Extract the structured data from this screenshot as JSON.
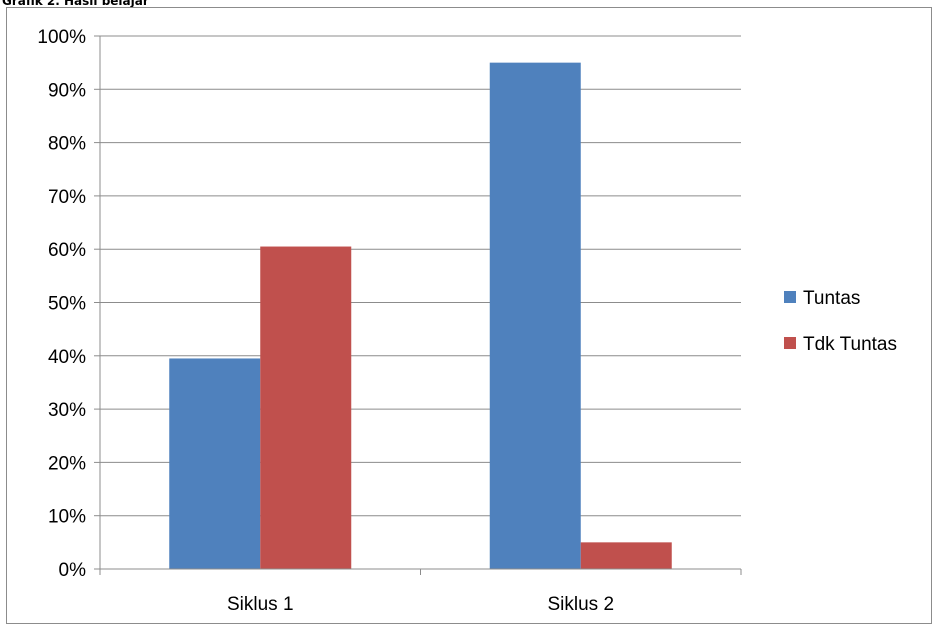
{
  "caption": "Grafik 2. Hasil belajar",
  "chart_data": {
    "type": "bar",
    "categories": [
      "Siklus 1",
      "Siklus 2"
    ],
    "series": [
      {
        "name": "Tuntas",
        "values": [
          39.5,
          95
        ],
        "color": "#4f81bd"
      },
      {
        "name": "Tdk Tuntas",
        "values": [
          60.5,
          5
        ],
        "color": "#c0504d"
      }
    ],
    "ylim": [
      0,
      100
    ],
    "yticks": [
      0,
      10,
      20,
      30,
      40,
      50,
      60,
      70,
      80,
      90,
      100
    ],
    "ytick_labels": [
      "0%",
      "10%",
      "20%",
      "30%",
      "40%",
      "50%",
      "60%",
      "70%",
      "80%",
      "90%",
      "100%"
    ],
    "grid": true,
    "legend_position": "right"
  }
}
